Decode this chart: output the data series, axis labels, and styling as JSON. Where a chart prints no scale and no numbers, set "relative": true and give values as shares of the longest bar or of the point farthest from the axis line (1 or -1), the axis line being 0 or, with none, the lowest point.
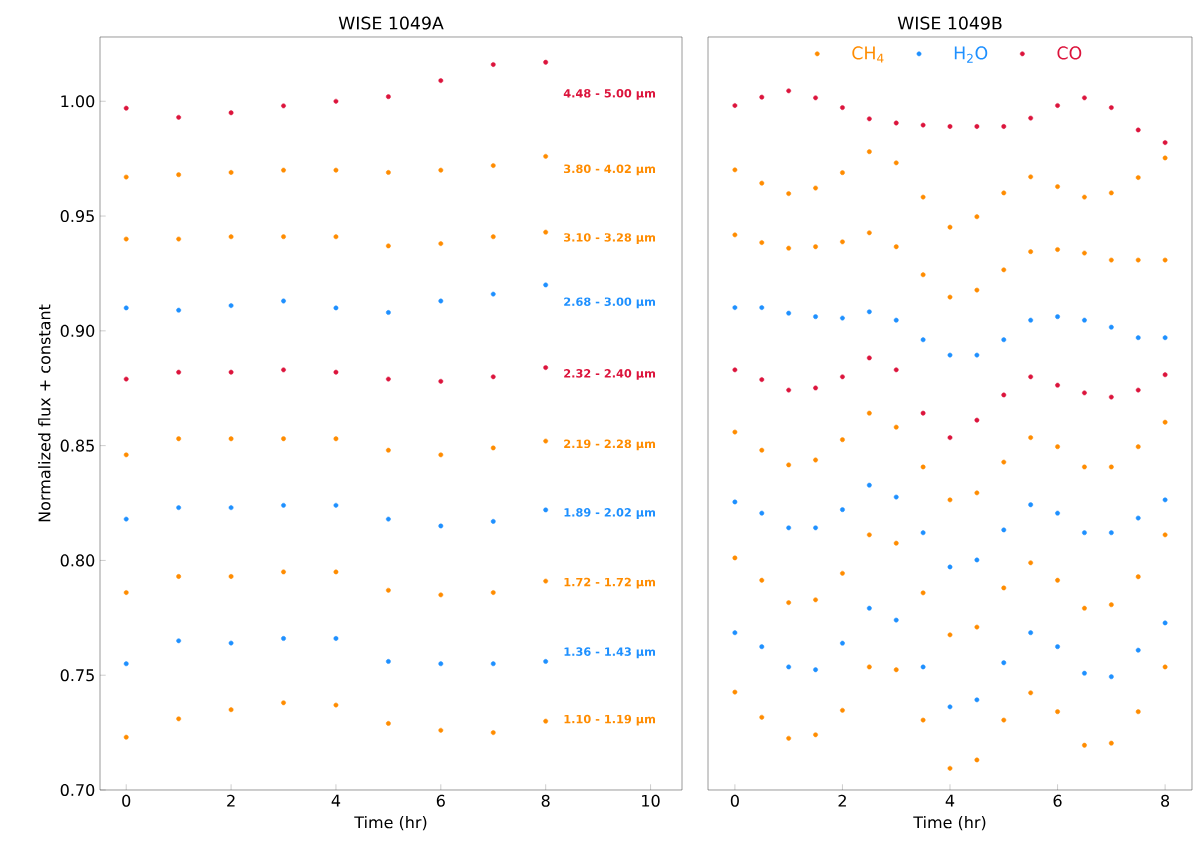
{
  "chart_data": [
    {
      "type": "scatter",
      "title": "WISE 1049A",
      "xlabel": "Time (hr)",
      "ylabel": "Normalized flux + constant",
      "x": [
        0,
        1,
        2,
        3,
        4,
        5,
        6,
        7,
        8
      ],
      "xlim": [
        -0.5,
        10.6
      ],
      "ylim": [
        0.7,
        1.028
      ],
      "xticks": [
        0,
        2,
        4,
        6,
        8,
        10
      ],
      "yticks": [
        {
          "value": 0.7,
          "label": "0.70"
        },
        {
          "value": 0.75,
          "label": "0.75"
        },
        {
          "value": 0.8,
          "label": "0.80"
        },
        {
          "value": 0.85,
          "label": "0.85"
        },
        {
          "value": 0.9,
          "label": "0.90"
        },
        {
          "value": 0.95,
          "label": "0.95"
        },
        {
          "value": 1.0,
          "label": "1.00"
        }
      ],
      "marker": "circle",
      "series": [
        {
          "name": "4.48 - 5.00 μm",
          "color": "#dc143c",
          "values": [
            0.997,
            0.993,
            0.995,
            0.998,
            1.0,
            1.002,
            1.009,
            1.016,
            1.017
          ]
        },
        {
          "name": "3.80 - 4.02 μm",
          "color": "#ff8c00",
          "values": [
            0.967,
            0.968,
            0.969,
            0.97,
            0.97,
            0.969,
            0.97,
            0.972,
            0.976
          ]
        },
        {
          "name": "3.10 - 3.28 μm",
          "color": "#ff8c00",
          "values": [
            0.94,
            0.94,
            0.941,
            0.941,
            0.941,
            0.937,
            0.938,
            0.941,
            0.943
          ]
        },
        {
          "name": "2.68 - 3.00 μm",
          "color": "#1e90ff",
          "values": [
            0.91,
            0.909,
            0.911,
            0.913,
            0.91,
            0.908,
            0.913,
            0.916,
            0.92
          ]
        },
        {
          "name": "2.32 - 2.40 μm",
          "color": "#dc143c",
          "values": [
            0.879,
            0.882,
            0.882,
            0.883,
            0.882,
            0.879,
            0.878,
            0.88,
            0.884
          ]
        },
        {
          "name": "2.19 - 2.28 μm",
          "color": "#ff8c00",
          "values": [
            0.846,
            0.853,
            0.853,
            0.853,
            0.853,
            0.848,
            0.846,
            0.849,
            0.852
          ]
        },
        {
          "name": "1.89 - 2.02 μm",
          "color": "#1e90ff",
          "values": [
            0.818,
            0.823,
            0.823,
            0.824,
            0.824,
            0.818,
            0.815,
            0.817,
            0.822
          ]
        },
        {
          "name": "1.72 - 1.72 μm",
          "color": "#ff8c00",
          "values": [
            0.786,
            0.793,
            0.793,
            0.795,
            0.795,
            0.787,
            0.785,
            0.786,
            0.791
          ]
        },
        {
          "name": "1.36 - 1.43 μm",
          "color": "#1e90ff",
          "values": [
            0.755,
            0.765,
            0.764,
            0.766,
            0.766,
            0.756,
            0.755,
            0.755,
            0.756
          ]
        },
        {
          "name": "1.10 - 1.19 μm",
          "color": "#ff8c00",
          "values": [
            0.723,
            0.731,
            0.735,
            0.738,
            0.737,
            0.729,
            0.726,
            0.725,
            0.73
          ]
        }
      ]
    },
    {
      "type": "scatter",
      "title": "WISE 1049B",
      "xlabel": "Time (hr)",
      "relative": true,
      "x": [
        0,
        0.5,
        1,
        1.5,
        2,
        2.5,
        3,
        3.5,
        4,
        4.5,
        5,
        5.5,
        6,
        6.5,
        7,
        7.5,
        8
      ],
      "xlim": [
        -0.5,
        8.5
      ],
      "xticks": [
        0,
        2,
        4,
        6,
        8
      ],
      "legend": "top",
      "marker": "circle",
      "series": [
        {
          "name": "CH$_{4}$",
          "color": "#ff8c00",
          "values": [
            0.887,
            0.868,
            0.853,
            0.861,
            0.883,
            0.913,
            0.897,
            0.848,
            0.805,
            0.82,
            0.854,
            0.877,
            0.863,
            0.848,
            0.854,
            0.876,
            0.904
          ]
        },
        {
          "name": "H$_{2}$O",
          "color": "#1e90ff",
          "values": [
            0.69,
            0.69,
            0.682,
            0.677,
            0.675,
            0.684,
            0.672,
            0.644,
            0.622,
            0.622,
            0.644,
            0.672,
            0.677,
            0.672,
            0.662,
            0.647,
            0.647
          ]
        },
        {
          "name": "CO",
          "color": "#dc143c",
          "values": [
            0.979,
            0.991,
            1,
            0.99,
            0.976,
            0.96,
            0.954,
            0.951,
            0.949,
            0.949,
            0.949,
            0.961,
            0.979,
            0.99,
            0.976,
            0.944,
            0.926
          ]
        },
        {
          "color": "#ff8c00",
          "values": [
            0.794,
            0.783,
            0.775,
            0.777,
            0.784,
            0.797,
            0.777,
            0.737,
            0.705,
            0.715,
            0.744,
            0.77,
            0.773,
            0.768,
            0.758,
            0.758,
            0.758
          ]
        },
        {
          "color": "#dc143c",
          "values": [
            0.601,
            0.587,
            0.572,
            0.575,
            0.591,
            0.618,
            0.601,
            0.539,
            0.504,
            0.529,
            0.565,
            0.591,
            0.579,
            0.568,
            0.562,
            0.572,
            0.594
          ]
        },
        {
          "color": "#ff8c00",
          "values": [
            0.512,
            0.486,
            0.465,
            0.472,
            0.501,
            0.539,
            0.519,
            0.462,
            0.415,
            0.425,
            0.469,
            0.504,
            0.491,
            0.462,
            0.462,
            0.491,
            0.526
          ]
        },
        {
          "color": "#1e90ff",
          "values": [
            0.412,
            0.396,
            0.375,
            0.375,
            0.401,
            0.436,
            0.419,
            0.368,
            0.319,
            0.329,
            0.372,
            0.408,
            0.396,
            0.368,
            0.368,
            0.389,
            0.415
          ]
        },
        {
          "color": "#ff8c00",
          "values": [
            0.332,
            0.3,
            0.268,
            0.272,
            0.31,
            0.365,
            0.353,
            0.282,
            0.222,
            0.233,
            0.289,
            0.325,
            0.3,
            0.26,
            0.265,
            0.305,
            0.365
          ]
        },
        {
          "color": "#1e90ff",
          "values": [
            0.225,
            0.205,
            0.176,
            0.172,
            0.21,
            0.26,
            0.243,
            0.176,
            0.119,
            0.129,
            0.182,
            0.225,
            0.205,
            0.167,
            0.162,
            0.2,
            0.239
          ]
        },
        {
          "color": "#ff8c00",
          "values": [
            0.14,
            0.104,
            0.074,
            0.079,
            0.114,
            0.176,
            0.172,
            0.1,
            0.031,
            0.043,
            0.1,
            0.139,
            0.112,
            0.064,
            0.067,
            0.112,
            0.176
          ]
        }
      ]
    }
  ]
}
